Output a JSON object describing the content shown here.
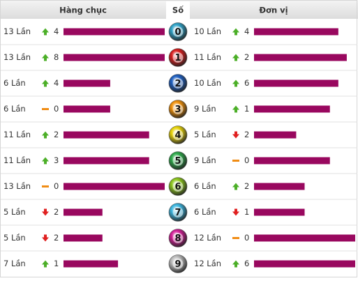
{
  "header": {
    "tens": "Hàng chục",
    "digit": "Số",
    "units": "Đơn vị"
  },
  "rows": [
    {
      "digit": 0,
      "ball_color": "#2fa3c8",
      "tens": {
        "count": 13,
        "count_label": "13 Lần",
        "trend": "up",
        "change": 4
      },
      "units": {
        "count": 10,
        "count_label": "10 Lần",
        "trend": "up",
        "change": 4
      }
    },
    {
      "digit": 1,
      "ball_color": "#d81e1e",
      "tens": {
        "count": 13,
        "count_label": "13 Lần",
        "trend": "up",
        "change": 8
      },
      "units": {
        "count": 11,
        "count_label": "11 Lần",
        "trend": "up",
        "change": 2
      }
    },
    {
      "digit": 2,
      "ball_color": "#1e5fc0",
      "tens": {
        "count": 6,
        "count_label": "6 Lần",
        "trend": "up",
        "change": 4
      },
      "units": {
        "count": 10,
        "count_label": "10 Lần",
        "trend": "up",
        "change": 6
      }
    },
    {
      "digit": 3,
      "ball_color": "#f0900a",
      "tens": {
        "count": 6,
        "count_label": "6 Lần",
        "trend": "flat",
        "change": 0
      },
      "units": {
        "count": 9,
        "count_label": "9 Lần",
        "trend": "up",
        "change": 1
      }
    },
    {
      "digit": 4,
      "ball_color": "#e8d40a",
      "tens": {
        "count": 11,
        "count_label": "11 Lần",
        "trend": "up",
        "change": 2
      },
      "units": {
        "count": 5,
        "count_label": "5 Lần",
        "trend": "down",
        "change": 2
      }
    },
    {
      "digit": 5,
      "ball_color": "#2ea84a",
      "tens": {
        "count": 11,
        "count_label": "11 Lần",
        "trend": "up",
        "change": 3
      },
      "units": {
        "count": 9,
        "count_label": "9 Lần",
        "trend": "flat",
        "change": 0
      }
    },
    {
      "digit": 6,
      "ball_color": "#8cc61e",
      "tens": {
        "count": 13,
        "count_label": "13 Lần",
        "trend": "flat",
        "change": 0
      },
      "units": {
        "count": 6,
        "count_label": "6 Lần",
        "trend": "up",
        "change": 2
      }
    },
    {
      "digit": 7,
      "ball_color": "#3cb6e0",
      "tens": {
        "count": 5,
        "count_label": "5 Lần",
        "trend": "down",
        "change": 2
      },
      "units": {
        "count": 6,
        "count_label": "6 Lần",
        "trend": "down",
        "change": 1
      }
    },
    {
      "digit": 8,
      "ball_color": "#d21e96",
      "tens": {
        "count": 5,
        "count_label": "5 Lần",
        "trend": "down",
        "change": 2
      },
      "units": {
        "count": 12,
        "count_label": "12 Lần",
        "trend": "flat",
        "change": 0
      }
    },
    {
      "digit": 9,
      "ball_color": "#bdbdbd",
      "tens": {
        "count": 7,
        "count_label": "7 Lần",
        "trend": "up",
        "change": 1
      },
      "units": {
        "count": 12,
        "count_label": "12 Lần",
        "trend": "up",
        "change": 6
      }
    }
  ]
}
